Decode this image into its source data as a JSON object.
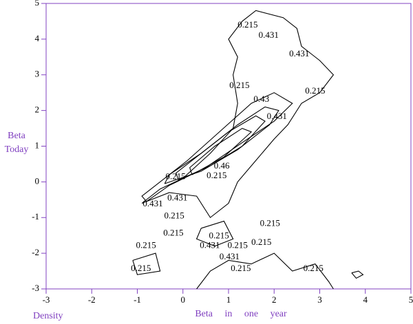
{
  "chart_data": {
    "type": "contour",
    "xlabel": "Beta in one year",
    "ylabel": "Beta Today",
    "corner_label": "Density",
    "xlim": [
      -3,
      5
    ],
    "ylim": [
      -3,
      5
    ],
    "xticks": [
      -3,
      -2,
      -1,
      0,
      1,
      2,
      3,
      4,
      5
    ],
    "yticks": [
      -3,
      -2,
      -1,
      0,
      1,
      2,
      3,
      4,
      5
    ],
    "color": "#000000",
    "axis_color": "#8040c0",
    "contours": [
      {
        "x": [
          -0.9,
          -0.5,
          0.0,
          0.6,
          1.1,
          1.2,
          1.1,
          1.2,
          1.0,
          1.3,
          1.6,
          2.2,
          2.5,
          2.6,
          2.8,
          3.0,
          3.3,
          3.0,
          2.6,
          2.3,
          2.0,
          1.6,
          1.2,
          1.0,
          0.6,
          0.3,
          -0.3,
          -0.9
        ],
        "y": [
          -0.6,
          -0.2,
          0.1,
          0.8,
          1.5,
          2.2,
          3.0,
          3.5,
          4.0,
          4.5,
          4.8,
          4.6,
          4.3,
          3.8,
          3.6,
          3.4,
          3.0,
          2.5,
          2.2,
          1.6,
          1.2,
          0.6,
          0.0,
          -0.6,
          -1.0,
          -0.4,
          -0.3,
          -0.6
        ]
      },
      {
        "x": [
          -0.8,
          -0.3,
          0.5,
          1.3,
          2.0,
          2.4,
          2.0,
          1.5,
          0.8,
          0.1,
          -0.6,
          -0.9,
          -0.8
        ],
        "y": [
          -0.55,
          -0.1,
          0.4,
          1.1,
          1.7,
          2.2,
          2.5,
          2.2,
          1.4,
          0.6,
          -0.1,
          -0.4,
          -0.55
        ]
      },
      {
        "x": [
          -0.4,
          0.4,
          1.2,
          1.9,
          2.1,
          1.8,
          1.2,
          0.4,
          -0.3,
          -0.4
        ],
        "y": [
          -0.05,
          0.3,
          0.9,
          1.6,
          2.0,
          2.1,
          1.6,
          0.8,
          0.2,
          -0.05
        ]
      },
      {
        "x": [
          -0.1,
          0.6,
          1.3,
          1.8,
          1.6,
          1.0,
          0.3,
          -0.15,
          -0.1
        ],
        "y": [
          0.05,
          0.45,
          1.0,
          1.7,
          1.85,
          1.4,
          0.7,
          0.25,
          0.05
        ]
      },
      {
        "x": [
          0.2,
          0.9,
          1.5,
          1.3,
          0.7,
          0.15,
          0.2
        ],
        "y": [
          0.2,
          0.7,
          1.4,
          1.5,
          1.0,
          0.4,
          0.2
        ]
      },
      {
        "x": [
          0.4,
          0.9,
          1.1,
          0.7,
          0.3,
          0.4
        ],
        "y": [
          -1.3,
          -1.1,
          -1.6,
          -1.8,
          -1.6,
          -1.3
        ]
      },
      {
        "x": [
          0.3,
          0.6,
          1.0,
          1.5,
          2.0,
          2.4,
          2.9,
          3.2,
          3.3
        ],
        "y": [
          -3,
          -2.5,
          -2.2,
          -2.3,
          -2.0,
          -2.5,
          -2.3,
          -2.8,
          -3
        ]
      },
      {
        "x": [
          3.7,
          3.85,
          3.95,
          3.8,
          3.7
        ],
        "y": [
          -2.55,
          -2.5,
          -2.6,
          -2.7,
          -2.55
        ]
      },
      {
        "x": [
          -1.1,
          -0.6,
          -0.5,
          -1.0,
          -1.1
        ],
        "y": [
          -2.2,
          -2.0,
          -2.5,
          -2.6,
          -2.2
        ]
      }
    ],
    "annotations": [
      {
        "text": "0.215",
        "x": 1.42,
        "y": 4.38
      },
      {
        "text": "0.431",
        "x": 1.88,
        "y": 4.09
      },
      {
        "text": "0.431",
        "x": 2.55,
        "y": 3.57
      },
      {
        "text": "0.215",
        "x": 1.24,
        "y": 2.69
      },
      {
        "text": "0.215",
        "x": 2.9,
        "y": 2.53
      },
      {
        "text": "0.43",
        "x": 1.72,
        "y": 2.3
      },
      {
        "text": "0.431",
        "x": 2.06,
        "y": 1.82
      },
      {
        "text": "0.215",
        "x": -0.16,
        "y": 0.13
      },
      {
        "text": "0.215",
        "x": 0.74,
        "y": 0.16
      },
      {
        "text": "0.46",
        "x": 0.85,
        "y": 0.43
      },
      {
        "text": "0.431",
        "x": -0.66,
        "y": -0.63
      },
      {
        "text": "0.431",
        "x": -0.12,
        "y": -0.47
      },
      {
        "text": "0.215",
        "x": -0.19,
        "y": -0.97
      },
      {
        "text": "0.215",
        "x": 1.91,
        "y": -1.18
      },
      {
        "text": "0.215",
        "x": -0.21,
        "y": -1.45
      },
      {
        "text": "0.215",
        "x": 0.79,
        "y": -1.53
      },
      {
        "text": "0.215",
        "x": 1.72,
        "y": -1.71
      },
      {
        "text": "0.215",
        "x": -0.81,
        "y": -1.8
      },
      {
        "text": "0.431",
        "x": 0.59,
        "y": -1.8
      },
      {
        "text": "0.215",
        "x": 1.2,
        "y": -1.8
      },
      {
        "text": "0.431",
        "x": 1.02,
        "y": -2.11
      },
      {
        "text": "0.215",
        "x": 1.27,
        "y": -2.44
      },
      {
        "text": "0.215",
        "x": -0.92,
        "y": -2.44
      },
      {
        "text": "0.215",
        "x": 2.86,
        "y": -2.44
      }
    ]
  }
}
